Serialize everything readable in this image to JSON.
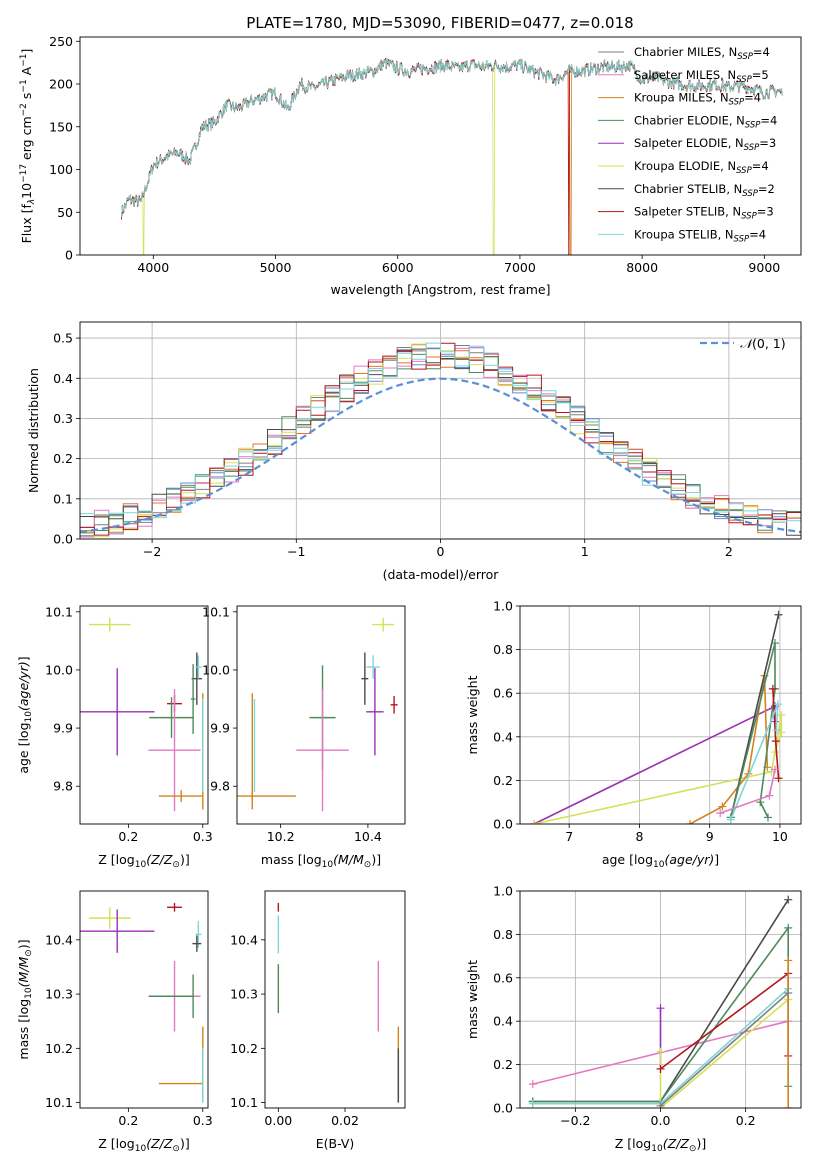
{
  "figure": {
    "title": "PLATE=1780, MJD=53090, FIBERID=0477, z=0.018"
  },
  "colors": {
    "c0": "#7f7f7f",
    "c1": "#e377c2",
    "c2": "#d2851f",
    "c3": "#4e8a5c",
    "c4": "#9b30b5",
    "c5": "#d4e157",
    "c6": "#4a4a4a",
    "c7": "#b5161d",
    "c8": "#7fd6d6",
    "hist_blue": "#6688dd",
    "hist_orange": "#e8702a",
    "hist_pink": "#e377c2",
    "normal": "#5b8fd6",
    "grid": "#b0b0b0"
  },
  "chart_data": [
    {
      "id": "spectrum",
      "type": "line",
      "xlabel": "wavelength [Angstrom, rest frame]",
      "ylabel": "Flux [f",
      "xlim": [
        3400,
        9300
      ],
      "ylim": [
        0,
        255
      ],
      "xticks": [
        4000,
        5000,
        6000,
        7000,
        8000,
        9000
      ],
      "yticks": [
        0,
        50,
        100,
        150,
        200,
        250
      ],
      "grid": false,
      "legend_position": "top-right",
      "legend": [
        "Chabrier MILES, N_SSP=4",
        "Salpeter MILES, N_SSP=5",
        "Kroupa MILES, N_SSP=4",
        "Chabrier ELODIE, N_SSP=4",
        "Salpeter ELODIE, N_SSP=3",
        "Kroupa ELODIE, N_SSP=4",
        "Chabrier STELIB, N_SSP=2",
        "Salpeter STELIB, N_SSP=3",
        "Kroupa STELIB, N_SSP=4"
      ],
      "continuum_x": [
        3740,
        3800,
        3900,
        4000,
        4100,
        4200,
        4300,
        4400,
        4500,
        4600,
        4700,
        4800,
        4900,
        5000,
        5100,
        5200,
        5300,
        5400,
        5500,
        5600,
        5700,
        5800,
        5900,
        6000,
        6100,
        6200,
        6300,
        6400,
        6500,
        6600,
        6700,
        6800,
        6900,
        7000,
        7100,
        7200,
        7300,
        7400,
        7500,
        7600,
        7700,
        7800,
        7900,
        8000,
        8100,
        8200,
        8300,
        8400,
        8500,
        8600,
        8700,
        8800,
        8900,
        9000,
        9100,
        9150
      ],
      "continuum_y": [
        50,
        65,
        62,
        105,
        115,
        120,
        110,
        150,
        155,
        175,
        172,
        180,
        185,
        190,
        170,
        200,
        195,
        200,
        205,
        210,
        212,
        215,
        225,
        218,
        215,
        218,
        220,
        222,
        218,
        223,
        220,
        222,
        220,
        222,
        215,
        210,
        205,
        215,
        215,
        218,
        220,
        220,
        222,
        205,
        208,
        203,
        200,
        198,
        198,
        200,
        196,
        198,
        195,
        190,
        192,
        190
      ]
    },
    {
      "id": "residuals",
      "type": "step-histogram",
      "xlabel": "(data-model)/error",
      "ylabel": "Normed distribution",
      "xlim": [
        -2.5,
        2.5
      ],
      "ylim": [
        0,
        0.54
      ],
      "xticks": [
        -2,
        -1,
        0,
        1,
        2
      ],
      "yticks": [
        0.0,
        0.1,
        0.2,
        0.3,
        0.4,
        0.5
      ],
      "grid": true,
      "legend_position": "top-right",
      "legend": [
        "N(0,1)"
      ],
      "bins_start": -2.5,
      "bin_width": 0.1
    },
    {
      "id": "age-vs-Z",
      "type": "errorbar",
      "xlabel": "Z [log",
      "ylabel": "age  [log",
      "xlim": [
        0.135,
        0.307
      ],
      "ylim": [
        9.735,
        10.11
      ],
      "xticks": [
        0.2,
        0.3
      ],
      "yticks": [
        9.8,
        9.9,
        10.0,
        10.1
      ],
      "points": [
        {
          "c": "c5",
          "x": 0.175,
          "y": 10.078,
          "xerr": 0.028,
          "yerr": 0.012
        },
        {
          "c": "c6",
          "x": 0.292,
          "y": 9.985,
          "xerr": 0.007,
          "yerr": 0.045
        },
        {
          "c": "c8",
          "x": 0.294,
          "y": 10.005,
          "xerr": 0.004,
          "yerr": 0.02
        },
        {
          "c": "c3",
          "x": 0.287,
          "y": 9.95,
          "xerr": 0.003,
          "yerr": 0.06
        },
        {
          "c": "c7",
          "x": 0.262,
          "y": 9.942,
          "xerr": 0.01,
          "yerr": 0.015
        },
        {
          "c": "c4",
          "x": 0.185,
          "y": 9.928,
          "xerr": 0.05,
          "yerr": 0.075
        },
        {
          "c": "c3",
          "x": 0.258,
          "y": 9.918,
          "xerr": 0.03,
          "yerr": 0.035
        },
        {
          "c": "c1",
          "x": 0.262,
          "y": 9.862,
          "xerr": 0.035,
          "yerr": 0.105
        },
        {
          "c": "c2",
          "x": 0.271,
          "y": 9.783,
          "xerr": 0.03,
          "yerr": 0.01
        },
        {
          "c": "c2",
          "x": 0.3,
          "y": 9.86,
          "xerr": 0.0,
          "yerr": 0.1
        },
        {
          "c": "c8",
          "x": 0.3,
          "y": 9.87,
          "xerr": 0.0,
          "yerr": 0.08
        }
      ]
    },
    {
      "id": "age-vs-mass",
      "type": "errorbar",
      "xlabel": "mass [log",
      "ylabel": "",
      "xlim": [
        10.1,
        10.485
      ],
      "ylim": [
        9.735,
        10.11
      ],
      "xticks": [
        10.2,
        10.4
      ],
      "yticks": [
        9.8,
        9.9,
        10.0,
        10.1
      ],
      "points": [
        {
          "c": "c5",
          "x": 10.435,
          "y": 10.078,
          "xerr": 0.025,
          "yerr": 0.012
        },
        {
          "c": "c8",
          "x": 10.412,
          "y": 10.005,
          "xerr": 0.015,
          "yerr": 0.02
        },
        {
          "c": "c6",
          "x": 10.393,
          "y": 9.985,
          "xerr": 0.008,
          "yerr": 0.045
        },
        {
          "c": "c4",
          "x": 10.416,
          "y": 9.928,
          "xerr": 0.02,
          "yerr": 0.075
        },
        {
          "c": "c7",
          "x": 10.46,
          "y": 9.94,
          "xerr": 0.008,
          "yerr": 0.015
        },
        {
          "c": "c3",
          "x": 10.296,
          "y": 9.918,
          "xerr": 0.03,
          "yerr": 0.09
        },
        {
          "c": "c1",
          "x": 10.296,
          "y": 9.862,
          "xerr": 0.06,
          "yerr": 0.105
        },
        {
          "c": "c2",
          "x": 10.135,
          "y": 9.783,
          "xerr": 0.1,
          "yerr": 0.01
        },
        {
          "c": "c2",
          "x": 10.135,
          "y": 9.86,
          "xerr": 0.0,
          "yerr": 0.1
        },
        {
          "c": "c8",
          "x": 10.14,
          "y": 9.87,
          "xerr": 0.0,
          "yerr": 0.08
        }
      ]
    },
    {
      "id": "mw-vs-age",
      "type": "line",
      "xlabel": "age  [log",
      "ylabel": "mass weight",
      "xlim": [
        6.3,
        10.3
      ],
      "ylim": [
        0,
        1.0
      ],
      "xticks": [
        7,
        8,
        9,
        10
      ],
      "yticks": [
        0.0,
        0.2,
        0.4,
        0.6,
        0.8,
        1.0
      ],
      "grid": true,
      "series": [
        {
          "c": "c4",
          "x": [
            6.5,
            9.93,
            9.93
          ],
          "y": [
            0.0,
            0.54,
            0.47
          ]
        },
        {
          "c": "c5",
          "x": [
            6.5,
            9.88,
            10.02,
            10.02,
            9.93
          ],
          "y": [
            0.0,
            0.24,
            0.5,
            0.42,
            0.33
          ]
        },
        {
          "c": "c2",
          "x": [
            8.72,
            9.18,
            9.55,
            9.78,
            9.82
          ],
          "y": [
            0.0,
            0.08,
            0.23,
            0.68,
            0.26
          ]
        },
        {
          "c": "c6",
          "x": [
            9.3,
            9.98
          ],
          "y": [
            0.03,
            0.96
          ]
        },
        {
          "c": "c3",
          "x": [
            9.3,
            9.93,
            9.93,
            9.72,
            9.83
          ],
          "y": [
            0.03,
            0.83,
            0.62,
            0.1,
            0.03
          ]
        },
        {
          "c": "c7",
          "x": [
            9.9,
            9.94,
            9.98
          ],
          "y": [
            0.62,
            0.38,
            0.21
          ]
        },
        {
          "c": "c8",
          "x": [
            9.3,
            9.97,
            9.95
          ],
          "y": [
            0.02,
            0.55,
            0.43
          ]
        },
        {
          "c": "c1",
          "x": [
            9.15,
            9.85,
            9.93
          ],
          "y": [
            0.05,
            0.13,
            0.25
          ]
        }
      ]
    },
    {
      "id": "mass-vs-Z",
      "type": "errorbar",
      "xlabel": "Z [log",
      "ylabel": "mass [log",
      "xlim": [
        0.135,
        0.307
      ],
      "ylim": [
        10.09,
        10.49
      ],
      "xticks": [
        0.2,
        0.3
      ],
      "yticks": [
        10.1,
        10.2,
        10.3,
        10.4
      ],
      "points": [
        {
          "c": "c5",
          "x": 0.175,
          "y": 10.44,
          "xerr": 0.028,
          "yerr": 0.02
        },
        {
          "c": "c4",
          "x": 0.185,
          "y": 10.416,
          "xerr": 0.05,
          "yerr": 0.04
        },
        {
          "c": "c7",
          "x": 0.262,
          "y": 10.46,
          "xerr": 0.01,
          "yerr": 0.008
        },
        {
          "c": "c8",
          "x": 0.294,
          "y": 10.41,
          "xerr": 0.004,
          "yerr": 0.025
        },
        {
          "c": "c6",
          "x": 0.292,
          "y": 10.393,
          "xerr": 0.006,
          "yerr": 0.015
        },
        {
          "c": "c3",
          "x": 0.287,
          "y": 10.296,
          "xerr": 0.003,
          "yerr": 0.04
        },
        {
          "c": "c1",
          "x": 0.262,
          "y": 10.296,
          "xerr": 0.035,
          "yerr": 0.065
        },
        {
          "c": "c3",
          "x": 0.258,
          "y": 10.296,
          "xerr": 0.03,
          "yerr": 0.0
        },
        {
          "c": "c2",
          "x": 0.271,
          "y": 10.135,
          "xerr": 0.03,
          "yerr": 0.0
        },
        {
          "c": "c2",
          "x": 0.3,
          "y": 10.17,
          "xerr": 0.0,
          "yerr": 0.07
        },
        {
          "c": "c8",
          "x": 0.3,
          "y": 10.15,
          "xerr": 0.0,
          "yerr": 0.05
        }
      ]
    },
    {
      "id": "mass-vs-ebv",
      "type": "errorbar",
      "xlabel": "E(B-V)",
      "ylabel": "",
      "xlim": [
        -0.004,
        0.038
      ],
      "ylim": [
        10.09,
        10.49
      ],
      "xticks": [
        0.0,
        0.02
      ],
      "yticks": [
        10.1,
        10.2,
        10.3,
        10.4
      ],
      "points": [
        {
          "c": "c7",
          "x": 0.0,
          "y": 10.46,
          "xerr": 0.0,
          "yerr": 0.008
        },
        {
          "c": "c8",
          "x": 0.0,
          "y": 10.41,
          "xerr": 0.0,
          "yerr": 0.035
        },
        {
          "c": "c3",
          "x": 0.0,
          "y": 10.31,
          "xerr": 0.0,
          "yerr": 0.045
        },
        {
          "c": "c1",
          "x": 0.03,
          "y": 10.296,
          "xerr": 0.0,
          "yerr": 0.065
        },
        {
          "c": "c2",
          "x": 0.036,
          "y": 10.17,
          "xerr": 0.0,
          "yerr": 0.07
        },
        {
          "c": "c6",
          "x": 0.036,
          "y": 10.15,
          "xerr": 0.0,
          "yerr": 0.05
        }
      ]
    },
    {
      "id": "mw-vs-Z",
      "type": "line",
      "xlabel": "Z [log",
      "ylabel": "mass weight",
      "xlim": [
        -0.33,
        0.33
      ],
      "ylim": [
        0,
        1.0
      ],
      "xticks": [
        -0.2,
        0.0,
        0.2
      ],
      "yticks": [
        0.0,
        0.2,
        0.4,
        0.6,
        0.8,
        1.0
      ],
      "grid": true,
      "series": [
        {
          "c": "c1",
          "x": [
            -0.3,
            0.3
          ],
          "y": [
            0.11,
            0.4
          ]
        },
        {
          "c": "c6",
          "x": [
            -0.3,
            0.0,
            0.3
          ],
          "y": [
            0.03,
            0.03,
            0.96
          ]
        },
        {
          "c": "c3",
          "x": [
            -0.3,
            0.0,
            0.3,
            0.3
          ],
          "y": [
            0.03,
            0.03,
            0.83,
            0.1
          ]
        },
        {
          "c": "c4",
          "x": [
            0.0,
            0.0
          ],
          "y": [
            0.18,
            0.46
          ]
        },
        {
          "c": "c5",
          "x": [
            0.0,
            0.0,
            0.3
          ],
          "y": [
            0.26,
            0.0,
            0.5
          ]
        },
        {
          "c": "c7",
          "x": [
            0.0,
            0.3,
            0.3
          ],
          "y": [
            0.18,
            0.62,
            0.24
          ]
        },
        {
          "c": "c8",
          "x": [
            -0.3,
            0.0,
            0.3
          ],
          "y": [
            0.02,
            0.02,
            0.55
          ]
        },
        {
          "c": "c2",
          "x": [
            0.3,
            0.3
          ],
          "y": [
            0.68,
            0.0
          ]
        },
        {
          "c": "c0",
          "x": [
            0.0,
            0.3
          ],
          "y": [
            0.01,
            0.53
          ]
        }
      ]
    }
  ]
}
